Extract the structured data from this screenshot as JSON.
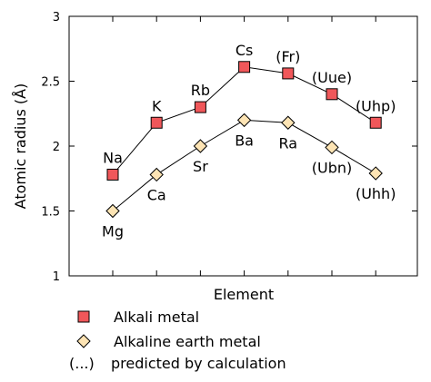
{
  "chart_data": {
    "type": "line",
    "xlabel": "Element",
    "ylabel": "Atomic radius (Å)",
    "ylim": [
      1,
      3
    ],
    "yticks": [
      "1",
      "1.5",
      "2",
      "2.5",
      "3"
    ],
    "grid": false,
    "series": [
      {
        "name": "Alkali metal",
        "marker": "square",
        "color": "#f0575a",
        "points": [
          {
            "label": "Na",
            "y": 1.78
          },
          {
            "label": "K",
            "y": 2.18
          },
          {
            "label": "Rb",
            "y": 2.3
          },
          {
            "label": "Cs",
            "y": 2.61
          },
          {
            "label": "(Fr)",
            "y": 2.56
          },
          {
            "label": "(Uue)",
            "y": 2.4
          },
          {
            "label": "(Uhp)",
            "y": 2.18
          }
        ]
      },
      {
        "name": "Alkaline earth metal",
        "marker": "diamond",
        "color": "#fde4b4",
        "points": [
          {
            "label": "Mg",
            "y": 1.5
          },
          {
            "label": "Ca",
            "y": 1.78
          },
          {
            "label": "Sr",
            "y": 2.0
          },
          {
            "label": "Ba",
            "y": 2.2
          },
          {
            "label": "Ra",
            "y": 2.18
          },
          {
            "label": "(Ubn)",
            "y": 1.99
          },
          {
            "label": "(Uhh)",
            "y": 1.79
          }
        ]
      }
    ],
    "legend_note": {
      "symbol": "(...)",
      "text": "predicted by calculation"
    },
    "legend_placement": "bottom"
  }
}
